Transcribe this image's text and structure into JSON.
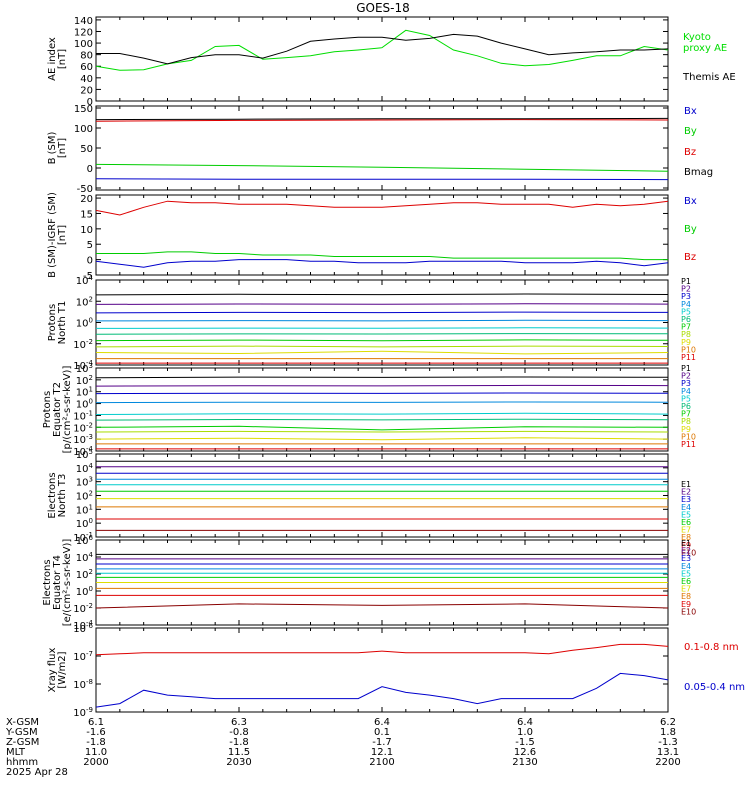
{
  "title": "GOES-18",
  "date": "2025 Apr 28",
  "x_axis": {
    "rows": [
      {
        "label": "X-GSM",
        "values": [
          "6.1",
          "6.3",
          "6.4",
          "6.4",
          "6.2"
        ]
      },
      {
        "label": "Y-GSM",
        "values": [
          "-1.6",
          "-0.8",
          "0.1",
          "1.0",
          "1.8"
        ]
      },
      {
        "label": "Z-GSM",
        "values": [
          "-1.8",
          "-1.8",
          "-1.7",
          "-1.5",
          "-1.3"
        ]
      },
      {
        "label": "MLT",
        "values": [
          "11.0",
          "11.5",
          "12.1",
          "12.6",
          "13.1"
        ]
      },
      {
        "label": "hhmm",
        "values": [
          "2000",
          "2030",
          "2100",
          "2130",
          "2200"
        ]
      }
    ]
  },
  "chart_data": [
    {
      "type": "line",
      "id": "ae",
      "ylabel": [
        "AE index",
        "[nT]"
      ],
      "yticks": [
        "0",
        "20",
        "40",
        "60",
        "80",
        "100",
        "120",
        "140"
      ],
      "ylim": [
        0,
        145
      ],
      "x_minutes": [
        0,
        5,
        10,
        15,
        20,
        25,
        30,
        35,
        40,
        45,
        50,
        55,
        60,
        65,
        70,
        75,
        80,
        85,
        90,
        95,
        100,
        105,
        110,
        115,
        120
      ],
      "series": [
        {
          "name": "Kyoto proxy AE",
          "color": "#00dd00",
          "values": [
            60,
            53,
            54,
            64,
            70,
            94,
            96,
            72,
            75,
            78,
            85,
            88,
            92,
            122,
            113,
            88,
            78,
            65,
            61,
            63,
            70,
            78,
            78,
            94,
            88
          ]
        },
        {
          "name": "Themis AE",
          "color": "#000000",
          "values": [
            82,
            82,
            74,
            64,
            75,
            80,
            80,
            74,
            86,
            103,
            107,
            110,
            110,
            105,
            108,
            115,
            112,
            100,
            90,
            80,
            83,
            85,
            88,
            88,
            90
          ]
        }
      ]
    },
    {
      "type": "line",
      "id": "b-sm",
      "ylabel": [
        "B (SM)",
        "[nT]"
      ],
      "yticks": [
        "-50",
        "0",
        "50",
        "100",
        "150"
      ],
      "ylim": [
        -55,
        155
      ],
      "x_minutes": [
        0,
        30,
        60,
        90,
        120
      ],
      "series": [
        {
          "name": "Bx",
          "color": "#0000cc",
          "values": [
            -27,
            -28,
            -28,
            -28,
            -29
          ]
        },
        {
          "name": "By",
          "color": "#00cc00",
          "values": [
            9,
            6,
            2,
            -3,
            -8
          ]
        },
        {
          "name": "Bz",
          "color": "#dd0000",
          "values": [
            117,
            119,
            120,
            121,
            120
          ]
        },
        {
          "name": "Bmag",
          "color": "#000000",
          "values": [
            121,
            122,
            123,
            123,
            124
          ]
        }
      ]
    },
    {
      "type": "line",
      "id": "b-igrf",
      "ylabel": [
        "B (SM)-IGRF (SM)",
        "[nT]"
      ],
      "yticks": [
        "-5",
        "0",
        "5",
        "10",
        "15",
        "20"
      ],
      "ylim": [
        -5,
        21
      ],
      "x_minutes": [
        0,
        5,
        10,
        15,
        20,
        25,
        30,
        35,
        40,
        45,
        50,
        55,
        60,
        65,
        70,
        75,
        80,
        85,
        90,
        95,
        100,
        105,
        110,
        115,
        120
      ],
      "series": [
        {
          "name": "Bx",
          "color": "#0000cc",
          "values": [
            -0.5,
            -1.5,
            -2.5,
            -1,
            -0.5,
            -0.5,
            0,
            0,
            0,
            -0.5,
            -0.5,
            -1,
            -1,
            -1,
            -0.5,
            -0.5,
            -0.5,
            -0.5,
            -1,
            -1,
            -1,
            -0.5,
            -1,
            -2,
            -1
          ]
        },
        {
          "name": "By",
          "color": "#00cc00",
          "values": [
            2,
            2,
            2,
            2.5,
            2.5,
            2,
            2,
            1.5,
            1.5,
            1.5,
            1,
            1,
            1,
            1,
            1,
            0.5,
            0.5,
            0.5,
            0.5,
            0.5,
            0.5,
            0.5,
            0.5,
            0,
            0
          ]
        },
        {
          "name": "Bz",
          "color": "#dd0000",
          "values": [
            16,
            14.5,
            17,
            19,
            18.5,
            18.5,
            18,
            18,
            18,
            17.5,
            17,
            17,
            17,
            17.5,
            18,
            18.5,
            18.5,
            18,
            18,
            18,
            17,
            18,
            17.5,
            18,
            19
          ]
        }
      ]
    },
    {
      "type": "line",
      "id": "protons-north",
      "log_scale": true,
      "ylabel": [
        "Protons",
        "North T1"
      ],
      "yticks": [
        "10^-4",
        "10^-2",
        "10^0",
        "10^2",
        "10^4"
      ],
      "ylim": [
        "1e-4",
        "1e4"
      ],
      "x_minutes": [
        0,
        30,
        60,
        90,
        120
      ],
      "series": [
        {
          "name": "P1",
          "color": "#000000",
          "values": [
            400,
            450,
            420,
            480,
            430
          ]
        },
        {
          "name": "P2",
          "color": "#550088",
          "values": [
            50,
            55,
            52,
            58,
            54
          ]
        },
        {
          "name": "P3",
          "color": "#0000cc",
          "values": [
            8,
            9,
            8.5,
            9.5,
            9
          ]
        },
        {
          "name": "P4",
          "color": "#0088dd",
          "values": [
            1.4,
            1.5,
            1.4,
            1.6,
            1.5
          ]
        },
        {
          "name": "P5",
          "color": "#00cccc",
          "values": [
            0.28,
            0.3,
            0.29,
            0.32,
            0.3
          ]
        },
        {
          "name": "P6",
          "color": "#00bb77",
          "values": [
            0.08,
            0.085,
            0.082,
            0.09,
            0.087
          ]
        },
        {
          "name": "P7",
          "color": "#00cc00",
          "values": [
            0.02,
            0.022,
            0.019,
            0.023,
            0.021
          ]
        },
        {
          "name": "P8",
          "color": "#aadd00",
          "values": [
            0.005,
            0.006,
            0.005,
            0.006,
            0.0055
          ]
        },
        {
          "name": "P9",
          "color": "#dddd00",
          "values": [
            0.0015,
            0.0012,
            0.002,
            0.0011,
            0.0015
          ]
        },
        {
          "name": "P10",
          "color": "#dd7700",
          "values": [
            0.0004,
            0.0004,
            0.0004,
            0.0004,
            0.0004
          ]
        },
        {
          "name": "P11",
          "color": "#dd0000",
          "values": [
            0.00015,
            0.00015,
            0.00015,
            0.00015,
            0.00015
          ]
        }
      ]
    },
    {
      "type": "line",
      "id": "protons-equator",
      "log_scale": true,
      "ylabel": [
        "Protons",
        "Equator T2",
        "[p/(cm²-s-sr-keV)]"
      ],
      "yticks": [
        "10^-4",
        "10^-3",
        "10^-2",
        "10^-1",
        "10^0",
        "10^1",
        "10^2",
        "10^3"
      ],
      "ylim": [
        "1e-4",
        "1e3"
      ],
      "x_minutes": [
        0,
        30,
        60,
        90,
        120
      ],
      "series": [
        {
          "name": "P1",
          "color": "#000000",
          "values": [
            150,
            170,
            160,
            175,
            165
          ]
        },
        {
          "name": "P2",
          "color": "#550088",
          "values": [
            30,
            32,
            31,
            34,
            33
          ]
        },
        {
          "name": "P3",
          "color": "#0000cc",
          "values": [
            7,
            7.5,
            7.2,
            7.8,
            7.4
          ]
        },
        {
          "name": "P4",
          "color": "#0088dd",
          "values": [
            1.2,
            1.3,
            1.25,
            1.35,
            1.3
          ]
        },
        {
          "name": "P5",
          "color": "#00cccc",
          "values": [
            0.12,
            0.14,
            0.13,
            0.15,
            0.13
          ]
        },
        {
          "name": "P6",
          "color": "#00bb77",
          "values": [
            0.04,
            0.045,
            0.042,
            0.048,
            0.044
          ]
        },
        {
          "name": "P7",
          "color": "#00cc00",
          "values": [
            0.01,
            0.012,
            0.006,
            0.011,
            0.01
          ]
        },
        {
          "name": "P8",
          "color": "#aadd00",
          "values": [
            0.004,
            0.0045,
            0.004,
            0.0045,
            0.004
          ]
        },
        {
          "name": "P9",
          "color": "#dddd00",
          "values": [
            0.001,
            0.0012,
            0.0009,
            0.0013,
            0.001
          ]
        },
        {
          "name": "P10",
          "color": "#dd7700",
          "values": [
            0.0004,
            0.0004,
            0.0004,
            0.0004,
            0.0004
          ]
        },
        {
          "name": "P11",
          "color": "#dd0000",
          "values": [
            0.00015,
            0.00015,
            0.00015,
            0.00015,
            0.00015
          ]
        }
      ]
    },
    {
      "type": "line",
      "id": "electrons-north",
      "log_scale": true,
      "ylabel": [
        "Electrons",
        "North T3"
      ],
      "yticks": [
        "10^-1",
        "10^0",
        "10^1",
        "10^2",
        "10^3",
        "10^4",
        "10^5"
      ],
      "ylim": [
        "1e-1",
        "1e5"
      ],
      "x_minutes": [
        0,
        30,
        60,
        90,
        120
      ],
      "series": [
        {
          "name": "E1",
          "color": "#000000",
          "values": [
            30000,
            30000,
            30000,
            30000,
            30000
          ]
        },
        {
          "name": "E2",
          "color": "#550088",
          "values": [
            12000,
            12000,
            12000,
            12000,
            12000
          ]
        },
        {
          "name": "E3",
          "color": "#0000cc",
          "values": [
            4000,
            4000,
            4000,
            4000,
            4000
          ]
        },
        {
          "name": "E4",
          "color": "#0088dd",
          "values": [
            1500,
            1500,
            1500,
            1500,
            1500
          ]
        },
        {
          "name": "E5",
          "color": "#00cccc",
          "values": [
            600,
            600,
            600,
            600,
            600
          ]
        },
        {
          "name": "E6",
          "color": "#00cc00",
          "values": [
            200,
            200,
            200,
            200,
            200
          ]
        },
        {
          "name": "E7",
          "color": "#dddd00",
          "values": [
            60,
            60,
            60,
            60,
            60
          ]
        },
        {
          "name": "E8",
          "color": "#dd7700",
          "values": [
            15,
            15,
            15,
            15,
            15
          ]
        },
        {
          "name": "E9",
          "color": "#dd0000",
          "values": [
            2,
            2,
            2,
            2,
            2
          ]
        },
        {
          "name": "E10",
          "color": "#880000",
          "values": [
            0.3,
            0.3,
            0.3,
            0.3,
            0.3
          ]
        }
      ]
    },
    {
      "type": "line",
      "id": "electrons-equator",
      "log_scale": true,
      "ylabel": [
        "Electrons",
        "Equator T4",
        "[e/(cm²-s-sr-keV)]"
      ],
      "yticks": [
        "10^-4",
        "10^-2",
        "10^0",
        "10^2",
        "10^4",
        "10^6"
      ],
      "ylim": [
        "1e-4",
        "1e6"
      ],
      "x_minutes": [
        0,
        30,
        60,
        90,
        120
      ],
      "series": [
        {
          "name": "E1",
          "color": "#000000",
          "values": [
            20000,
            20000,
            20000,
            20000,
            20000
          ]
        },
        {
          "name": "E2",
          "color": "#550088",
          "values": [
            6000,
            6000,
            6000,
            6000,
            6000
          ]
        },
        {
          "name": "E3",
          "color": "#0000cc",
          "values": [
            1500,
            1500,
            1500,
            1500,
            1500
          ]
        },
        {
          "name": "E4",
          "color": "#0088dd",
          "values": [
            400,
            400,
            400,
            400,
            400
          ]
        },
        {
          "name": "E5",
          "color": "#00cccc",
          "values": [
            120,
            120,
            120,
            120,
            120
          ]
        },
        {
          "name": "E6",
          "color": "#00cc00",
          "values": [
            40,
            40,
            40,
            40,
            40
          ]
        },
        {
          "name": "E7",
          "color": "#dddd00",
          "values": [
            10,
            10,
            10,
            10,
            10
          ]
        },
        {
          "name": "E8",
          "color": "#dd7700",
          "values": [
            2,
            2,
            2,
            2,
            2
          ]
        },
        {
          "name": "E9",
          "color": "#dd0000",
          "values": [
            0.3,
            0.3,
            0.3,
            0.3,
            0.3
          ]
        },
        {
          "name": "E10",
          "color": "#880000",
          "values": [
            0.01,
            0.03,
            0.02,
            0.03,
            0.01
          ]
        }
      ]
    },
    {
      "type": "line",
      "id": "xray",
      "log_scale": true,
      "ylabel": [
        "Xray flux",
        "[W/m2]"
      ],
      "yticks": [
        "10^-9",
        "10^-8",
        "10^-7",
        "10^-6"
      ],
      "ylim": [
        "1e-9",
        "1e-6"
      ],
      "x_minutes": [
        0,
        5,
        10,
        15,
        20,
        25,
        30,
        35,
        40,
        45,
        50,
        55,
        60,
        65,
        70,
        75,
        80,
        85,
        90,
        95,
        100,
        105,
        110,
        115,
        120
      ],
      "series": [
        {
          "name": "0.1-0.8 nm",
          "color": "#dd0000",
          "values": [
            1.1e-07,
            1.2e-07,
            1.3e-07,
            1.3e-07,
            1.3e-07,
            1.3e-07,
            1.3e-07,
            1.3e-07,
            1.3e-07,
            1.3e-07,
            1.3e-07,
            1.3e-07,
            1.5e-07,
            1.3e-07,
            1.3e-07,
            1.3e-07,
            1.3e-07,
            1.3e-07,
            1.3e-07,
            1.2e-07,
            1.6e-07,
            2e-07,
            2.6e-07,
            2.6e-07,
            2.2e-07
          ]
        },
        {
          "name": "0.05-0.4 nm",
          "color": "#0000cc",
          "values": [
            1.5e-09,
            2e-09,
            6e-09,
            4e-09,
            3.5e-09,
            3e-09,
            3e-09,
            3e-09,
            3e-09,
            3e-09,
            3e-09,
            3e-09,
            8e-09,
            5e-09,
            4e-09,
            3e-09,
            2e-09,
            3e-09,
            3e-09,
            3e-09,
            3e-09,
            7e-09,
            2.4e-08,
            2e-08,
            1.4e-08
          ]
        }
      ]
    }
  ]
}
